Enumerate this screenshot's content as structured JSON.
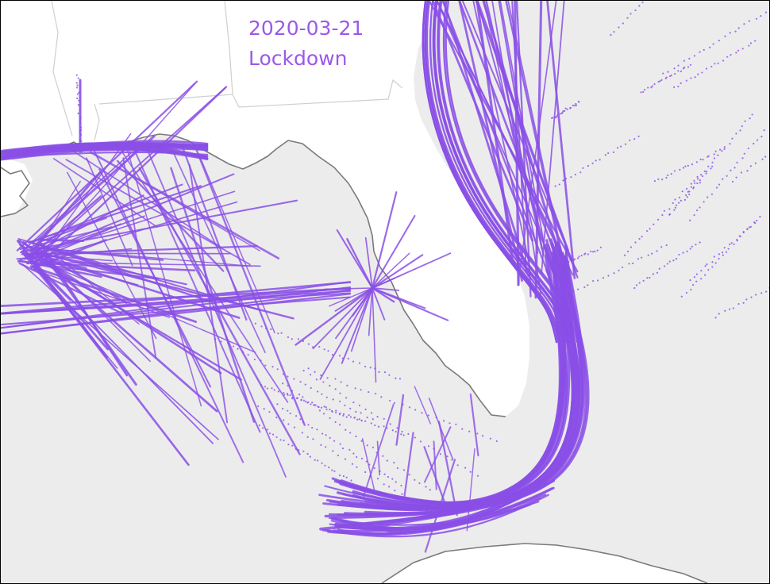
{
  "title": {
    "date": "2020-03-21",
    "label": "Lockdown"
  },
  "colors": {
    "track": "#8a4fe6",
    "water": "#ececec",
    "land": "#ffffff",
    "coastline": "#7a7a7a",
    "border": "#cfcfcf",
    "caption": "#9b59e8"
  },
  "map": {
    "region": "Gulf of Mexico / Florida",
    "layers": [
      "land",
      "state-borders",
      "coastline",
      "vessel-tracks"
    ]
  }
}
